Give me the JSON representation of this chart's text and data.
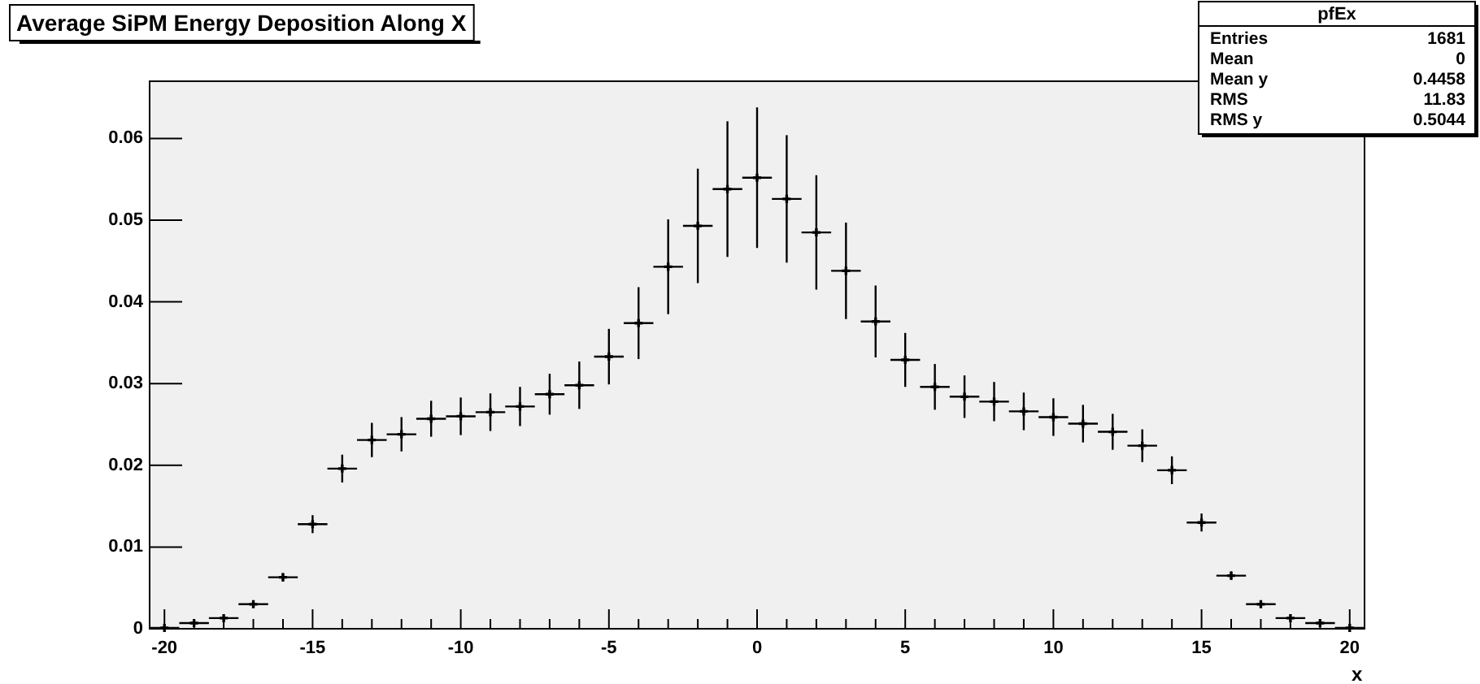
{
  "chart_data": {
    "type": "scatter",
    "title": "Average SiPM Energy Deposition Along X",
    "xlabel": "x",
    "annotations": [
      "pfEx",
      "Entries",
      "1681",
      "Mean",
      "0",
      "Mean y",
      "0.4458",
      "RMS",
      "11.83",
      "RMS y",
      "0.5044"
    ],
    "x": [
      -20,
      -19,
      -18,
      -17,
      -16,
      -15,
      -14,
      -13,
      -12,
      -11,
      -10,
      -9,
      -8,
      -7,
      -6,
      -5,
      -4,
      -3,
      -2,
      -1,
      0,
      1,
      2,
      3,
      4,
      5,
      6,
      7,
      8,
      9,
      10,
      11,
      12,
      13,
      14,
      15,
      16,
      17,
      18,
      19,
      20
    ],
    "series": [
      {
        "color": "#000000",
        "values": [
          0.0001,
          0.0007,
          0.0013,
          0.003,
          0.0063,
          0.0128,
          0.0196,
          0.0231,
          0.0238,
          0.0257,
          0.026,
          0.0265,
          0.0272,
          0.0287,
          0.0298,
          0.0333,
          0.0374,
          0.0443,
          0.0493,
          0.0538,
          0.0552,
          0.0526,
          0.0485,
          0.0438,
          0.0376,
          0.0329,
          0.0296,
          0.0284,
          0.0278,
          0.0266,
          0.0259,
          0.0251,
          0.0241,
          0.0224,
          0.0194,
          0.013,
          0.0065,
          0.003,
          0.0013,
          0.0007,
          0.0001
        ],
        "errors": [
          null,
          null,
          0.0002,
          0.0003,
          0.0005,
          0.0011,
          0.0017,
          0.0021,
          0.0021,
          0.0022,
          0.0023,
          0.0023,
          0.0024,
          0.0025,
          0.0029,
          0.0034,
          0.0044,
          0.0058,
          0.007,
          0.0083,
          0.0086,
          0.0078,
          0.007,
          0.0059,
          0.0044,
          0.0033,
          0.0028,
          0.0026,
          0.0024,
          0.0023,
          0.0023,
          0.0023,
          0.0022,
          0.002,
          0.0017,
          0.0011,
          0.0005,
          0.0003,
          0.0002,
          null,
          null
        ],
        "xerrors": [
          0.5,
          0.5,
          0.5,
          0.5,
          0.5,
          0.5,
          0.5,
          0.5,
          0.5,
          0.5,
          0.5,
          0.5,
          0.5,
          0.5,
          0.5,
          0.5,
          0.5,
          0.5,
          0.5,
          0.5,
          0.5,
          0.5,
          0.5,
          0.5,
          0.5,
          0.5,
          0.5,
          0.5,
          0.5,
          0.5,
          0.5,
          0.5,
          0.5,
          0.5,
          0.5,
          0.5,
          0.5,
          0.5,
          0.5,
          0.5,
          0.5
        ]
      }
    ],
    "marker": "cross",
    "grid": false,
    "xlim": [
      -20.5,
      20.5
    ],
    "xticks": [
      -20,
      {
        "value": -19,
        "label": null
      },
      {
        "value": -18,
        "label": null
      },
      {
        "value": -17,
        "label": null
      },
      {
        "value": -16,
        "label": null
      },
      -15,
      {
        "value": -14,
        "label": null
      },
      {
        "value": -13,
        "label": null
      },
      {
        "value": -12,
        "label": null
      },
      {
        "value": -11,
        "label": null
      },
      -10,
      {
        "value": -9,
        "label": null
      },
      {
        "value": -8,
        "label": null
      },
      {
        "value": -7,
        "label": null
      },
      {
        "value": -6,
        "label": null
      },
      -5,
      {
        "value": -4,
        "label": null
      },
      {
        "value": -3,
        "label": null
      },
      {
        "value": -2,
        "label": null
      },
      {
        "value": -1,
        "label": null
      },
      0,
      {
        "value": 1,
        "label": null
      },
      {
        "value": 2,
        "label": null
      },
      {
        "value": 3,
        "label": null
      },
      {
        "value": 4,
        "label": null
      },
      5,
      {
        "value": 6,
        "label": null
      },
      {
        "value": 7,
        "label": null
      },
      {
        "value": 8,
        "label": null
      },
      {
        "value": 9,
        "label": null
      },
      10,
      {
        "value": 11,
        "label": null
      },
      {
        "value": 12,
        "label": null
      },
      {
        "value": 13,
        "label": null
      },
      {
        "value": 14,
        "label": null
      },
      15,
      {
        "value": 16,
        "label": null
      },
      {
        "value": 17,
        "label": null
      },
      {
        "value": 18,
        "label": null
      },
      {
        "value": 19,
        "label": null
      },
      20
    ],
    "ylim": [
      0,
      0.067
    ],
    "yticks": [
      0,
      0.01,
      0.02,
      0.03,
      0.04,
      0.05,
      0.06
    ]
  }
}
